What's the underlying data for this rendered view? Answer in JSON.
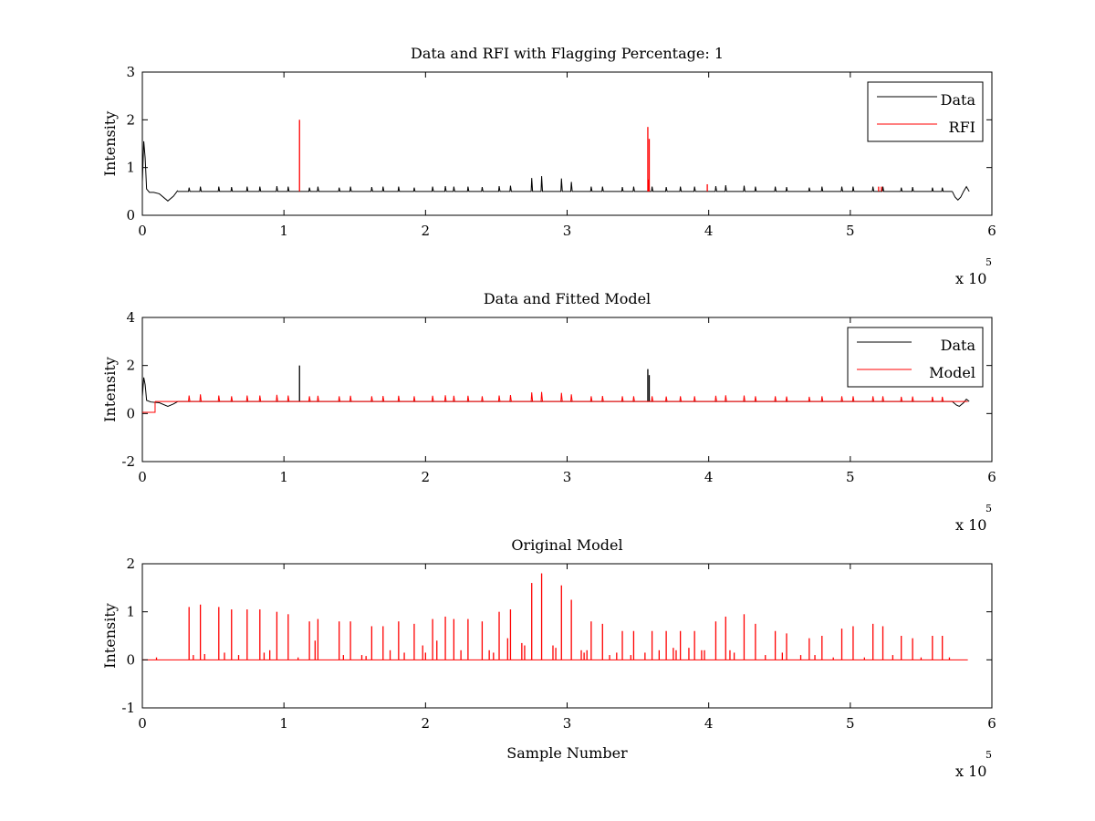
{
  "figure": {
    "background": "#ffffff"
  },
  "chart_data": [
    {
      "type": "line",
      "title": "Data and RFI with Flagging Percentage: 1",
      "xlabel": "",
      "ylabel": "Intensity",
      "xlim": [
        0,
        6
      ],
      "ylim": [
        0,
        3
      ],
      "xticks": [
        "0",
        "1",
        "2",
        "3",
        "4",
        "5",
        "6"
      ],
      "yticks": [
        "0",
        "1",
        "2",
        "3"
      ],
      "x_exponent_base": "x 10",
      "x_exponent_power": "5",
      "grid": false,
      "legend_position": "top-right",
      "baseline": 0.5,
      "start_bump": {
        "x": [
          0.0,
          0.01,
          0.02,
          0.03,
          0.05,
          0.08,
          0.12,
          0.18,
          0.22,
          0.25
        ],
        "y": [
          0.7,
          1.55,
          1.2,
          0.55,
          0.48,
          0.48,
          0.45,
          0.3,
          0.4,
          0.52
        ]
      },
      "end_dip": {
        "x": [
          5.72,
          5.74,
          5.76,
          5.78,
          5.8,
          5.82,
          5.84
        ],
        "y": [
          0.5,
          0.38,
          0.32,
          0.38,
          0.5,
          0.6,
          0.5
        ]
      },
      "series": [
        {
          "name": "Data",
          "color": "#000000",
          "peaks_x": [
            0.33,
            0.41,
            0.54,
            0.63,
            0.74,
            0.83,
            0.95,
            1.03,
            1.18,
            1.24,
            1.39,
            1.47,
            1.62,
            1.7,
            1.81,
            1.92,
            2.05,
            2.14,
            2.2,
            2.3,
            2.4,
            2.52,
            2.6,
            2.75,
            2.82,
            2.96,
            3.03,
            3.17,
            3.25,
            3.39,
            3.47,
            3.6,
            3.7,
            3.8,
            3.9,
            4.05,
            4.12,
            4.25,
            4.33,
            4.47,
            4.55,
            4.71,
            4.8,
            4.94,
            5.02,
            5.16,
            5.23,
            5.36,
            5.44,
            5.58,
            5.65
          ],
          "peaks_y": [
            0.58,
            0.6,
            0.6,
            0.59,
            0.6,
            0.6,
            0.61,
            0.6,
            0.58,
            0.6,
            0.58,
            0.6,
            0.59,
            0.6,
            0.6,
            0.58,
            0.6,
            0.61,
            0.6,
            0.6,
            0.59,
            0.61,
            0.62,
            0.78,
            0.82,
            0.77,
            0.7,
            0.6,
            0.6,
            0.59,
            0.6,
            0.6,
            0.59,
            0.6,
            0.6,
            0.61,
            0.63,
            0.62,
            0.6,
            0.6,
            0.59,
            0.58,
            0.6,
            0.6,
            0.6,
            0.6,
            0.6,
            0.58,
            0.59,
            0.58,
            0.58
          ]
        },
        {
          "name": "RFI",
          "color": "#ff0000",
          "spikes_x": [
            1.11,
            3.57,
            3.575,
            3.58,
            3.99,
            5.2,
            5.22
          ],
          "spikes_y": [
            2.0,
            1.85,
            0.75,
            1.6,
            0.65,
            0.6,
            0.6
          ]
        }
      ]
    },
    {
      "type": "line",
      "title": "Data and Fitted Model",
      "xlabel": "",
      "ylabel": "Intensity",
      "xlim": [
        0,
        6
      ],
      "ylim": [
        -2,
        4
      ],
      "xticks": [
        "0",
        "1",
        "2",
        "3",
        "4",
        "5",
        "6"
      ],
      "yticks": [
        "-2",
        "0",
        "2",
        "4"
      ],
      "x_exponent_base": "x 10",
      "x_exponent_power": "5",
      "grid": false,
      "legend_position": "top-right",
      "baseline": 0.5,
      "model_step": {
        "x": [
          0.0,
          0.09,
          0.09
        ],
        "y": [
          0.05,
          0.05,
          0.5
        ]
      },
      "series": [
        {
          "name": "Data",
          "color": "#000000",
          "spikes_x": [
            1.11,
            3.57,
            3.58
          ],
          "spikes_y": [
            2.0,
            1.85,
            1.6
          ]
        },
        {
          "name": "Model",
          "color": "#ff0000",
          "peaks_x": [
            0.33,
            0.41,
            0.54,
            0.63,
            0.74,
            0.83,
            0.95,
            1.03,
            1.18,
            1.24,
            1.39,
            1.47,
            1.62,
            1.7,
            1.81,
            1.92,
            2.05,
            2.14,
            2.2,
            2.3,
            2.4,
            2.52,
            2.6,
            2.75,
            2.82,
            2.96,
            3.03,
            3.17,
            3.25,
            3.39,
            3.47,
            3.6,
            3.7,
            3.8,
            3.9,
            4.05,
            4.12,
            4.25,
            4.33,
            4.47,
            4.55,
            4.71,
            4.8,
            4.94,
            5.02,
            5.16,
            5.23,
            5.36,
            5.44,
            5.58,
            5.65
          ],
          "peaks_y": [
            0.75,
            0.8,
            0.75,
            0.72,
            0.75,
            0.75,
            0.78,
            0.75,
            0.72,
            0.74,
            0.72,
            0.74,
            0.72,
            0.73,
            0.74,
            0.72,
            0.74,
            0.76,
            0.74,
            0.74,
            0.72,
            0.75,
            0.77,
            0.88,
            0.9,
            0.86,
            0.8,
            0.72,
            0.73,
            0.72,
            0.72,
            0.72,
            0.71,
            0.72,
            0.72,
            0.74,
            0.76,
            0.75,
            0.72,
            0.72,
            0.71,
            0.7,
            0.72,
            0.72,
            0.72,
            0.72,
            0.72,
            0.7,
            0.71,
            0.7,
            0.7
          ]
        }
      ]
    },
    {
      "type": "line",
      "title": "Original Model",
      "xlabel": "Sample Number",
      "ylabel": "Intensity",
      "xlim": [
        0,
        6
      ],
      "ylim": [
        -1,
        2
      ],
      "xticks": [
        "0",
        "1",
        "2",
        "3",
        "4",
        "5",
        "6"
      ],
      "yticks": [
        "-1",
        "0",
        "1",
        "2"
      ],
      "x_exponent_base": "x 10",
      "x_exponent_power": "5",
      "grid": false,
      "line_end_x": 5.83,
      "series": [
        {
          "color": "#ff0000",
          "peaks_x": [
            0.33,
            0.41,
            0.54,
            0.63,
            0.74,
            0.83,
            0.95,
            1.03,
            1.18,
            1.24,
            1.39,
            1.47,
            1.62,
            1.7,
            1.81,
            1.92,
            2.05,
            2.14,
            2.2,
            2.3,
            2.4,
            2.52,
            2.6,
            2.75,
            2.82,
            2.96,
            3.03,
            3.17,
            3.25,
            3.39,
            3.47,
            3.6,
            3.7,
            3.8,
            3.9,
            4.05,
            4.12,
            4.25,
            4.33,
            4.47,
            4.55,
            4.71,
            4.8,
            4.94,
            5.02,
            5.16,
            5.23,
            5.36,
            5.44,
            5.58,
            5.65
          ],
          "peaks_y": [
            1.1,
            1.15,
            1.1,
            1.05,
            1.05,
            1.05,
            1.0,
            0.95,
            0.8,
            0.85,
            0.8,
            0.8,
            0.7,
            0.7,
            0.8,
            0.75,
            0.85,
            0.9,
            0.85,
            0.85,
            0.8,
            1.0,
            1.05,
            1.6,
            1.8,
            1.55,
            1.25,
            0.8,
            0.75,
            0.6,
            0.6,
            0.6,
            0.6,
            0.6,
            0.6,
            0.8,
            0.9,
            0.95,
            0.75,
            0.6,
            0.55,
            0.45,
            0.5,
            0.65,
            0.7,
            0.75,
            0.7,
            0.5,
            0.45,
            0.5,
            0.5
          ],
          "minor_x": [
            0.1,
            0.36,
            0.44,
            0.58,
            0.68,
            0.86,
            0.9,
            1.1,
            1.22,
            1.42,
            1.55,
            1.58,
            1.75,
            1.85,
            1.98,
            2.0,
            2.08,
            2.25,
            2.45,
            2.48,
            2.58,
            2.68,
            2.7,
            2.9,
            2.92,
            3.1,
            3.12,
            3.14,
            3.3,
            3.35,
            3.45,
            3.55,
            3.65,
            3.75,
            3.77,
            3.86,
            3.95,
            3.97,
            4.15,
            4.18,
            4.4,
            4.52,
            4.65,
            4.75,
            4.88,
            5.1,
            5.3,
            5.5,
            5.7
          ],
          "minor_y": [
            0.05,
            0.1,
            0.12,
            0.15,
            0.1,
            0.15,
            0.2,
            0.05,
            0.4,
            0.1,
            0.1,
            0.08,
            0.2,
            0.15,
            0.3,
            0.15,
            0.4,
            0.2,
            0.2,
            0.15,
            0.45,
            0.35,
            0.3,
            0.3,
            0.25,
            0.2,
            0.15,
            0.2,
            0.1,
            0.15,
            0.1,
            0.15,
            0.2,
            0.25,
            0.2,
            0.25,
            0.2,
            0.2,
            0.2,
            0.15,
            0.1,
            0.15,
            0.1,
            0.1,
            0.05,
            0.05,
            0.1,
            0.05,
            0.05
          ]
        }
      ]
    }
  ]
}
